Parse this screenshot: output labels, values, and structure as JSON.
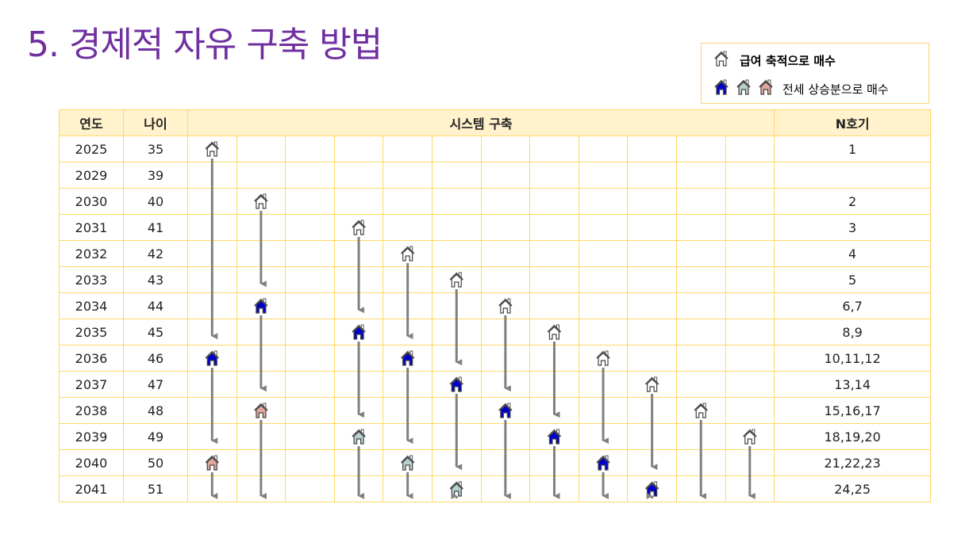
{
  "title": "5. 경제적 자유 구축 방법",
  "legend": {
    "salary_label": "급여 축적으로 매수",
    "jeonse_label": "전세 상승분으로 매수"
  },
  "colors": {
    "outline": "#ffffff",
    "blue": "#0000cc",
    "gray": "#b7d0cf",
    "pink": "#e3a59d",
    "grid": "#ffd966",
    "header_bg": "#fff2cc",
    "arrow": "#808080"
  },
  "table": {
    "headers": {
      "year": "연도",
      "age": "나이",
      "system": "시스템 구축",
      "n": "N호기"
    },
    "rows": [
      {
        "year": "2025",
        "age": "35",
        "n": "1"
      },
      {
        "year": "2029",
        "age": "39",
        "n": ""
      },
      {
        "year": "2030",
        "age": "40",
        "n": "2"
      },
      {
        "year": "2031",
        "age": "41",
        "n": "3"
      },
      {
        "year": "2032",
        "age": "42",
        "n": "4"
      },
      {
        "year": "2033",
        "age": "43",
        "n": "5"
      },
      {
        "year": "2034",
        "age": "44",
        "n": "6,7"
      },
      {
        "year": "2035",
        "age": "45",
        "n": "8,9"
      },
      {
        "year": "2036",
        "age": "46",
        "n": "10,11,12"
      },
      {
        "year": "2037",
        "age": "47",
        "n": "13,14"
      },
      {
        "year": "2038",
        "age": "48",
        "n": "15,16,17"
      },
      {
        "year": "2039",
        "age": "49",
        "n": "18,19,20"
      },
      {
        "year": "2040",
        "age": "50",
        "n": "21,22,23"
      },
      {
        "year": "2041",
        "age": "51",
        "n": "24,25"
      }
    ]
  },
  "system_columns": [
    {
      "houses": [
        {
          "year": "2025",
          "type": "outline"
        },
        {
          "year": "2036",
          "type": "blue"
        },
        {
          "year": "2040",
          "type": "pink"
        }
      ]
    },
    {
      "houses": [
        {
          "year": "2030",
          "type": "outline"
        },
        {
          "year": "2034",
          "type": "blue"
        },
        {
          "year": "2038",
          "type": "pink"
        }
      ]
    },
    {
      "houses": []
    },
    {
      "houses": [
        {
          "year": "2031",
          "type": "outline"
        },
        {
          "year": "2035",
          "type": "blue"
        },
        {
          "year": "2039",
          "type": "gray"
        }
      ]
    },
    {
      "houses": [
        {
          "year": "2032",
          "type": "outline"
        },
        {
          "year": "2036",
          "type": "blue"
        },
        {
          "year": "2040",
          "type": "gray"
        }
      ]
    },
    {
      "houses": [
        {
          "year": "2033",
          "type": "outline"
        },
        {
          "year": "2037",
          "type": "blue"
        },
        {
          "year": "2041",
          "type": "gray"
        }
      ]
    },
    {
      "houses": [
        {
          "year": "2034",
          "type": "outline"
        },
        {
          "year": "2038",
          "type": "blue"
        }
      ]
    },
    {
      "houses": [
        {
          "year": "2035",
          "type": "outline"
        },
        {
          "year": "2039",
          "type": "blue"
        }
      ]
    },
    {
      "houses": [
        {
          "year": "2036",
          "type": "outline"
        },
        {
          "year": "2040",
          "type": "blue"
        }
      ]
    },
    {
      "houses": [
        {
          "year": "2037",
          "type": "outline"
        },
        {
          "year": "2041",
          "type": "blue"
        }
      ]
    },
    {
      "houses": [
        {
          "year": "2038",
          "type": "outline"
        }
      ]
    },
    {
      "houses": [
        {
          "year": "2039",
          "type": "outline"
        }
      ]
    }
  ]
}
